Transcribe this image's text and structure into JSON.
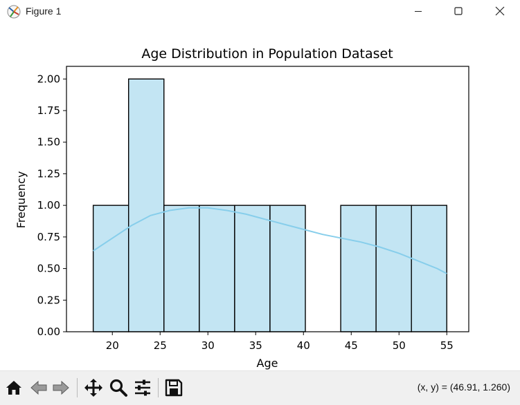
{
  "window": {
    "title": "Figure 1"
  },
  "toolbar": {
    "items": [
      "home-icon",
      "back-icon",
      "forward-icon",
      "pan-icon",
      "zoom-icon",
      "configure-subplots-icon",
      "save-icon"
    ],
    "coords_readout": "(x, y) = (46.91, 1.260)"
  },
  "colors": {
    "bar_fill": "#c3e5f3",
    "bar_edge": "#000000",
    "kde_line": "#87ceeb",
    "toolbar_bg": "#f0f0f0"
  },
  "chart_data": {
    "type": "bar",
    "title": "Age Distribution in Population Dataset",
    "xlabel": "Age",
    "ylabel": "Frequency",
    "bins": [
      {
        "start": 18.0,
        "end": 21.7,
        "count": 1
      },
      {
        "start": 21.7,
        "end": 25.4,
        "count": 2
      },
      {
        "start": 25.4,
        "end": 29.1,
        "count": 1
      },
      {
        "start": 29.1,
        "end": 32.8,
        "count": 1
      },
      {
        "start": 32.8,
        "end": 36.5,
        "count": 1
      },
      {
        "start": 36.5,
        "end": 40.2,
        "count": 1
      },
      {
        "start": 40.2,
        "end": 43.9,
        "count": 0
      },
      {
        "start": 43.9,
        "end": 47.6,
        "count": 1
      },
      {
        "start": 47.6,
        "end": 51.3,
        "count": 1
      },
      {
        "start": 51.3,
        "end": 55.0,
        "count": 1
      }
    ],
    "kde": {
      "x": [
        18,
        20,
        22,
        24,
        26,
        28,
        30,
        32,
        34,
        36,
        38,
        40,
        42,
        44,
        46,
        48,
        50,
        52,
        54,
        55
      ],
      "y": [
        0.64,
        0.74,
        0.84,
        0.92,
        0.96,
        0.98,
        0.98,
        0.96,
        0.93,
        0.89,
        0.85,
        0.81,
        0.77,
        0.74,
        0.71,
        0.67,
        0.62,
        0.56,
        0.5,
        0.46
      ]
    },
    "xlim": [
      15.2,
      57.3
    ],
    "ylim": [
      0,
      2.1
    ],
    "xticks": [
      20,
      25,
      30,
      35,
      40,
      45,
      50,
      55
    ],
    "yticks": [
      0.0,
      0.25,
      0.5,
      0.75,
      1.0,
      1.25,
      1.5,
      1.75,
      2.0
    ],
    "ytick_labels": [
      "0.00",
      "0.25",
      "0.50",
      "0.75",
      "1.00",
      "1.25",
      "1.50",
      "1.75",
      "2.00"
    ],
    "grid": false,
    "legend": "none"
  }
}
